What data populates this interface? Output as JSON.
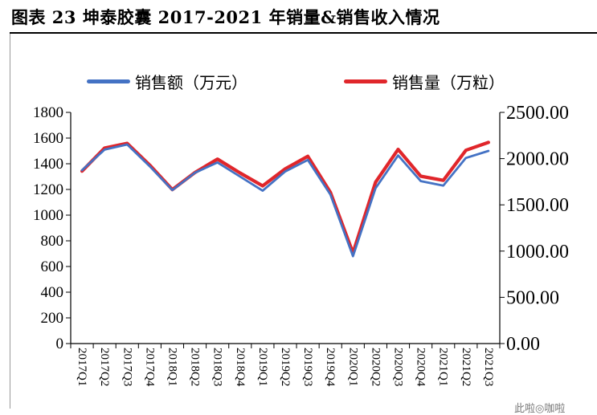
{
  "header": {
    "title": "图表 23 坤泰胶囊 2017-2021 年销量&销售收入情况"
  },
  "source_fragment": "此啦◎咖啦",
  "chart_data": {
    "type": "line",
    "title": "",
    "categories": [
      "2017Q1",
      "2017Q2",
      "2017Q3",
      "2017Q4",
      "2018Q1",
      "2018Q2",
      "2018Q3",
      "2018Q4",
      "2019Q1",
      "2019Q2",
      "2019Q3",
      "2019Q4",
      "2020Q1",
      "2020Q2",
      "2020Q3",
      "2020Q4",
      "2021Q1",
      "2021Q2",
      "2021Q3"
    ],
    "y_left": {
      "min": 0,
      "max": 1800,
      "step": 200,
      "ticks": [
        "0",
        "200",
        "400",
        "600",
        "800",
        "1000",
        "1200",
        "1400",
        "1600",
        "1800"
      ]
    },
    "y_right": {
      "min": 0,
      "max": 2500,
      "step": 500,
      "ticks": [
        "0.00",
        "500.00",
        "1000.00",
        "1500.00",
        "2000.00",
        "2500.00"
      ]
    },
    "series": [
      {
        "name": "销售额（万元）",
        "axis": "left",
        "color": "#4472C4",
        "values": [
          1350,
          1510,
          1550,
          1380,
          1195,
          1330,
          1410,
          1300,
          1190,
          1340,
          1430,
          1160,
          680,
          1210,
          1465,
          1265,
          1230,
          1445,
          1500
        ]
      },
      {
        "name": "销售量（万粒）",
        "axis": "right",
        "color": "#E0262B",
        "values": [
          1865,
          2115,
          2165,
          1930,
          1665,
          1850,
          1995,
          1845,
          1705,
          1890,
          2025,
          1635,
          980,
          1745,
          2100,
          1810,
          1765,
          2090,
          2175
        ]
      }
    ],
    "grid": false,
    "legend": "top"
  }
}
